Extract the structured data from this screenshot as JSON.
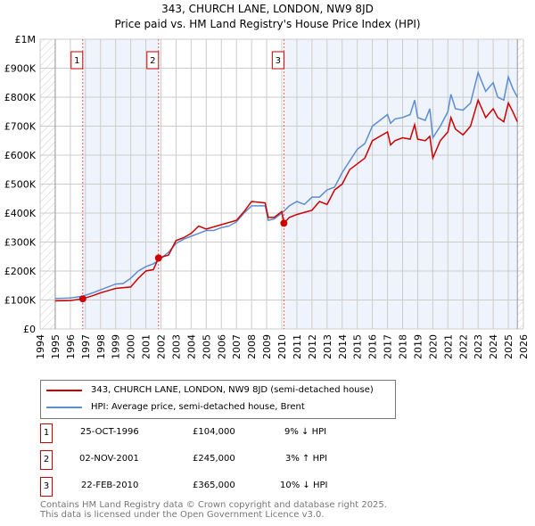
{
  "title": "343, CHURCH LANE, LONDON, NW9 8JD",
  "subtitle": "Price paid vs. HM Land Registry's House Price Index (HPI)",
  "chart_data": {
    "type": "line",
    "title": "343, CHURCH LANE, LONDON, NW9 8JD",
    "subtitle": "Price paid vs. HM Land Registry's House Price Index (HPI)",
    "xlim": [
      1994,
      2026
    ],
    "ylim": [
      0,
      1000000
    ],
    "x_ticks": [
      "1994",
      "1995",
      "1996",
      "1997",
      "1998",
      "1999",
      "2000",
      "2001",
      "2002",
      "2003",
      "2004",
      "2005",
      "2006",
      "2007",
      "2008",
      "2009",
      "2010",
      "2011",
      "2012",
      "2013",
      "2014",
      "2015",
      "2016",
      "2017",
      "2018",
      "2019",
      "2020",
      "2021",
      "2022",
      "2023",
      "2024",
      "2025",
      "2026"
    ],
    "y_ticks": [
      {
        "v": 0,
        "label": "£0"
      },
      {
        "v": 100000,
        "label": "£100K"
      },
      {
        "v": 200000,
        "label": "£200K"
      },
      {
        "v": 300000,
        "label": "£300K"
      },
      {
        "v": 400000,
        "label": "£400K"
      },
      {
        "v": 500000,
        "label": "£500K"
      },
      {
        "v": 600000,
        "label": "£600K"
      },
      {
        "v": 700000,
        "label": "£700K"
      },
      {
        "v": 800000,
        "label": "£800K"
      },
      {
        "v": 900000,
        "label": "£900K"
      },
      {
        "v": 1000000,
        "label": "£1M"
      }
    ],
    "grid": true,
    "series": [
      {
        "name": "343, CHURCH LANE, LONDON, NW9 8JD (semi-detached house)",
        "color": "#cc0000",
        "x": [
          1995,
          1996,
          1996.8,
          1997.5,
          1998,
          1999,
          2000,
          2000.5,
          2001,
          2001.5,
          2001.84,
          2002.5,
          2003,
          2003.5,
          2004,
          2004.5,
          2005,
          2006,
          2007,
          2007.5,
          2008,
          2008.9,
          2009.1,
          2009.5,
          2010,
          2010.14,
          2010.5,
          2011,
          2012,
          2012.5,
          2013,
          2013.5,
          2014,
          2014.5,
          2015,
          2015.5,
          2016,
          2016.5,
          2017,
          2017.2,
          2017.5,
          2018,
          2018.5,
          2018.8,
          2019,
          2019.5,
          2019.8,
          2020,
          2020.5,
          2021,
          2021.2,
          2021.5,
          2022,
          2022.5,
          2023,
          2023.5,
          2024,
          2024.3,
          2024.7,
          2025,
          2025.3,
          2025.6
        ],
        "y": [
          97000,
          98000,
          104000,
          115000,
          125000,
          140000,
          145000,
          175000,
          200000,
          205000,
          245000,
          255000,
          305000,
          315000,
          330000,
          355000,
          345000,
          360000,
          375000,
          405000,
          440000,
          435000,
          385000,
          385000,
          405000,
          365000,
          385000,
          395000,
          410000,
          440000,
          430000,
          480000,
          500000,
          550000,
          570000,
          590000,
          650000,
          665000,
          680000,
          635000,
          650000,
          660000,
          655000,
          705000,
          655000,
          650000,
          665000,
          590000,
          650000,
          680000,
          730000,
          690000,
          670000,
          700000,
          790000,
          730000,
          760000,
          730000,
          715000,
          780000,
          750000,
          715000
        ]
      },
      {
        "name": "HPI: Average price, semi-detached house, Brent",
        "color": "#5b8dd0",
        "x": [
          1995,
          1996,
          1996.8,
          1997.5,
          1998,
          1999,
          1999.5,
          2000,
          2000.5,
          2001,
          2001.5,
          2001.84,
          2002.5,
          2003,
          2003.5,
          2004,
          2004.5,
          2005,
          2005.5,
          2006,
          2006.5,
          2007,
          2007.5,
          2008,
          2008.5,
          2008.9,
          2009.1,
          2009.5,
          2010,
          2010.5,
          2011,
          2011.5,
          2012,
          2012.5,
          2013,
          2013.5,
          2014,
          2014.5,
          2015,
          2015.5,
          2016,
          2016.5,
          2017,
          2017.2,
          2017.5,
          2018,
          2018.5,
          2018.8,
          2019,
          2019.5,
          2019.8,
          2020,
          2020.5,
          2021,
          2021.2,
          2021.5,
          2022,
          2022.5,
          2023,
          2023.5,
          2024,
          2024.3,
          2024.7,
          2025,
          2025.3,
          2025.6
        ],
        "y": [
          105000,
          107000,
          113000,
          125000,
          135000,
          155000,
          157000,
          175000,
          200000,
          215000,
          225000,
          237000,
          265000,
          295000,
          310000,
          320000,
          330000,
          340000,
          340000,
          350000,
          355000,
          370000,
          400000,
          425000,
          425000,
          425000,
          375000,
          380000,
          400000,
          425000,
          440000,
          430000,
          455000,
          455000,
          480000,
          490000,
          540000,
          580000,
          620000,
          640000,
          700000,
          720000,
          740000,
          710000,
          725000,
          730000,
          740000,
          790000,
          730000,
          720000,
          760000,
          660000,
          700000,
          750000,
          810000,
          760000,
          755000,
          780000,
          885000,
          820000,
          850000,
          800000,
          790000,
          870000,
          830000,
          800000
        ]
      }
    ],
    "shaded_periods": [
      [
        1996.82,
        2001.84
      ],
      [
        2010.14,
        2025.6
      ]
    ],
    "annotations": [
      {
        "label": "1",
        "x": 1996.82,
        "y": 104000
      },
      {
        "label": "2",
        "x": 2001.84,
        "y": 245000
      },
      {
        "label": "3",
        "x": 2010.14,
        "y": 365000
      }
    ],
    "legend_position": "bottom"
  },
  "legend": [
    {
      "label": "343, CHURCH LANE, LONDON, NW9 8JD (semi-detached house)",
      "color": "#cc0000"
    },
    {
      "label": "HPI: Average price, semi-detached house, Brent",
      "color": "#5b8dd0"
    }
  ],
  "transactions": [
    {
      "num": "1",
      "date": "25-OCT-1996",
      "price": "£104,000",
      "hpi": "9% ↓ HPI"
    },
    {
      "num": "2",
      "date": "02-NOV-2001",
      "price": "£245,000",
      "hpi": "3% ↑ HPI"
    },
    {
      "num": "3",
      "date": "22-FEB-2010",
      "price": "£365,000",
      "hpi": "10% ↓ HPI"
    }
  ],
  "footer": [
    "Contains HM Land Registry data © Crown copyright and database right 2025.",
    "This data is licensed under the Open Government Licence v3.0."
  ]
}
